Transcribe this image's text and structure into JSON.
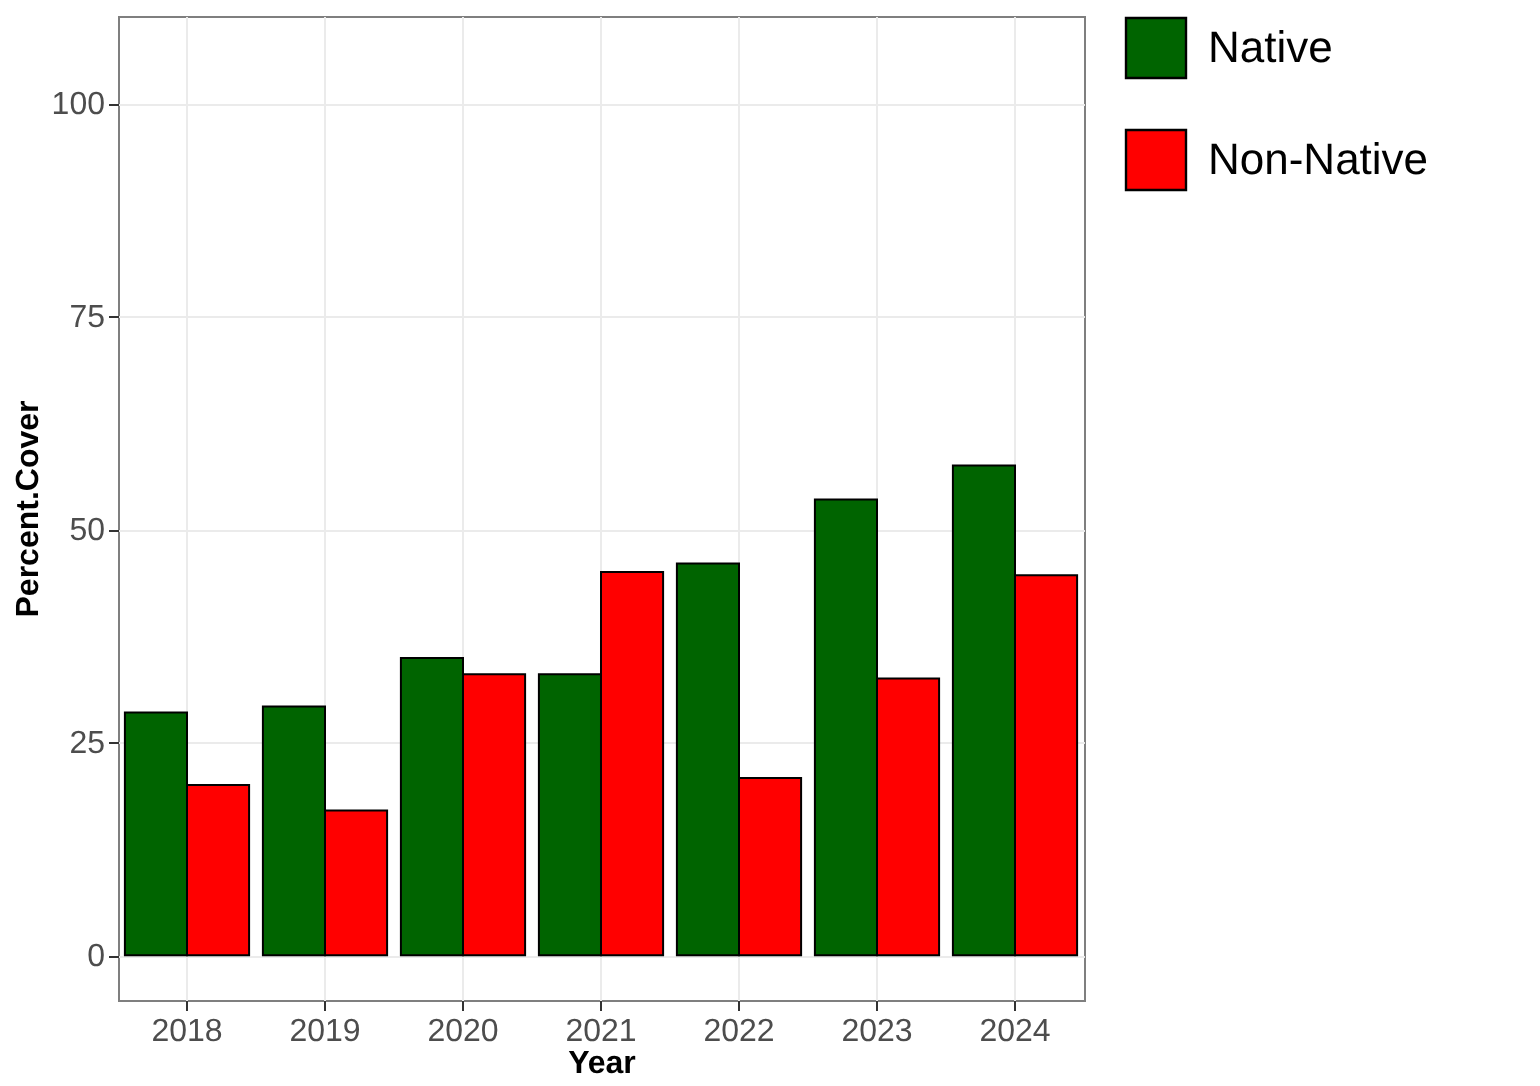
{
  "chart_data": {
    "type": "bar",
    "xlabel": "Year",
    "ylabel": "Percent.Cover",
    "categories": [
      "2018",
      "2019",
      "2020",
      "2021",
      "2022",
      "2023",
      "2024"
    ],
    "series": [
      {
        "name": "Native",
        "color": "#006400",
        "values": [
          28.5,
          29.2,
          34.9,
          33.0,
          46.0,
          53.5,
          57.5
        ]
      },
      {
        "name": "Non-Native",
        "color": "#ff0000",
        "values": [
          20.0,
          17.0,
          33.0,
          45.0,
          20.8,
          32.5,
          44.6
        ]
      }
    ],
    "ylim": [
      -5.25,
      110.25
    ],
    "yticks": [
      0,
      25,
      50,
      75,
      100
    ],
    "grid": true,
    "legend": "right"
  }
}
